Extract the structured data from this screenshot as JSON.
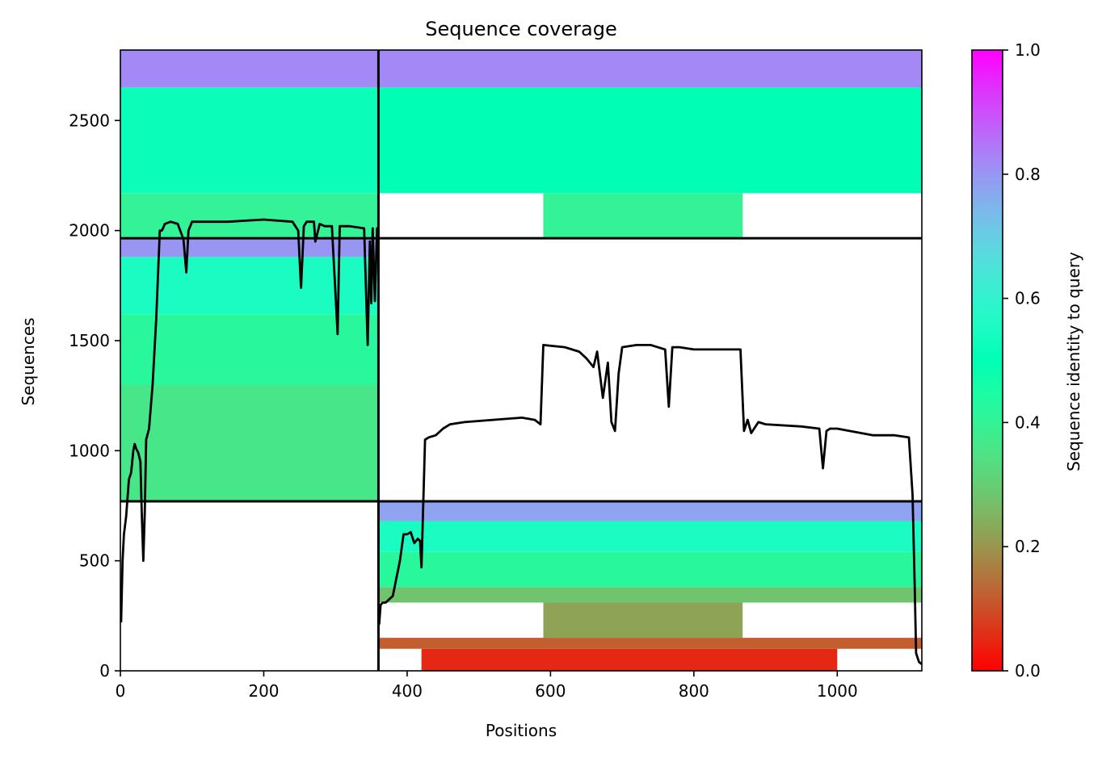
{
  "chart_data": {
    "type": "heatmap",
    "title": "Sequence coverage",
    "xlabel": "Positions",
    "ylabel": "Sequences",
    "xlim": [
      0,
      1118
    ],
    "ylim": [
      0,
      2820
    ],
    "xticks": [
      0,
      200,
      400,
      600,
      800,
      1000
    ],
    "yticks": [
      0,
      500,
      1000,
      1500,
      2000,
      2500
    ],
    "grid": false,
    "colormap": "rainbow_r",
    "colorbar": {
      "label": "Sequence identity to query",
      "range": [
        0,
        1
      ],
      "ticks": [
        "0.0",
        "0.2",
        "0.4",
        "0.6",
        "0.8",
        "1.0"
      ]
    },
    "boundaries": {
      "vertical_x": 360,
      "horizontal_y": [
        770,
        1965
      ]
    },
    "blocks": [
      {
        "name": "top-left",
        "x": [
          0,
          360
        ],
        "bands": [
          {
            "y": [
              2650,
              2820
            ],
            "identity": 0.82
          },
          {
            "y": [
              2170,
              2650
            ],
            "identity": 0.52
          },
          {
            "y": [
              1970,
              2170
            ],
            "identity": 0.4
          }
        ]
      },
      {
        "name": "top-right",
        "x": [
          360,
          1118
        ],
        "bands": [
          {
            "y": [
              2650,
              2820
            ],
            "identity": 0.82
          },
          {
            "y": [
              2170,
              2650
            ],
            "identity": 0.5
          },
          {
            "y": [
              1970,
              2170
            ],
            "identity": 0.4,
            "x": [
              590,
              868
            ]
          }
        ]
      },
      {
        "name": "middle-left",
        "x": [
          0,
          360
        ],
        "bands": [
          {
            "y": [
              1880,
              1965
            ],
            "identity": 0.8
          },
          {
            "y": [
              1620,
              1880
            ],
            "identity": 0.55
          },
          {
            "y": [
              1300,
              1620
            ],
            "identity": 0.42
          },
          {
            "y": [
              770,
              1300
            ],
            "identity": 0.36
          }
        ]
      },
      {
        "name": "bottom-right",
        "x": [
          360,
          1118
        ],
        "bands": [
          {
            "y": [
              680,
              770
            ],
            "identity": 0.78
          },
          {
            "y": [
              540,
              680
            ],
            "identity": 0.55
          },
          {
            "y": [
              380,
              540
            ],
            "identity": 0.42
          },
          {
            "y": [
              310,
              380
            ],
            "identity": 0.28
          },
          {
            "y": [
              150,
              310
            ],
            "identity": 0.22,
            "x": [
              590,
              868
            ]
          },
          {
            "y": [
              100,
              150
            ],
            "identity": 0.12
          },
          {
            "y": [
              0,
              100
            ],
            "identity": 0.05,
            "x": [
              420,
              1000
            ]
          }
        ]
      }
    ],
    "series": [
      {
        "type": "line",
        "color": "#000000",
        "segments": [
          {
            "x": [
              1,
              3,
              5,
              8,
              12,
              15,
              18,
              20,
              22,
              25,
              28,
              30,
              32,
              34,
              36,
              40,
              45,
              50,
              55,
              58,
              62,
              70,
              80,
              88,
              92,
              95,
              100,
              120,
              150,
              200,
              240,
              248,
              252,
              256,
              260,
              270,
              272,
              278,
              285,
              295,
              303,
              306,
              320,
              340,
              345,
              348,
              350,
              352,
              355,
              358,
              360
            ],
            "y": [
              220,
              500,
              620,
              700,
              870,
              900,
              1000,
              1030,
              1010,
              990,
              950,
              700,
              500,
              720,
              1050,
              1100,
              1300,
              1600,
              2000,
              2000,
              2030,
              2040,
              2030,
              1960,
              1810,
              2000,
              2040,
              2040,
              2040,
              2050,
              2040,
              2000,
              1740,
              2020,
              2040,
              2040,
              1950,
              2030,
              2020,
              2020,
              1530,
              2020,
              2020,
              2010,
              1480,
              1950,
              1670,
              2010,
              1680,
              2010,
              2000
            ]
          },
          {
            "x": [
              361,
              363,
              366,
              370,
              380,
              390,
              395,
              400,
              405,
              410,
              415,
              418,
              420,
              425,
              430,
              440,
              450,
              460,
              480,
              520,
              560,
              578,
              586,
              590,
              620,
              640,
              650,
              660,
              665,
              670,
              673,
              680,
              685,
              690,
              695,
              700,
              720,
              740,
              760,
              765,
              770,
              780,
              800,
              820,
              840,
              865,
              870,
              875,
              880,
              890,
              900,
              950,
              975,
              980,
              985,
              990,
              1000,
              1050,
              1080,
              1100,
              1105,
              1108,
              1110,
              1114,
              1118
            ],
            "y": [
              210,
              300,
              310,
              310,
              340,
              500,
              620,
              620,
              630,
              580,
              600,
              590,
              470,
              1050,
              1060,
              1070,
              1100,
              1120,
              1130,
              1140,
              1150,
              1140,
              1120,
              1480,
              1470,
              1450,
              1420,
              1380,
              1450,
              1320,
              1240,
              1400,
              1130,
              1090,
              1350,
              1470,
              1480,
              1480,
              1460,
              1200,
              1470,
              1470,
              1460,
              1460,
              1460,
              1460,
              1090,
              1140,
              1080,
              1130,
              1120,
              1110,
              1100,
              920,
              1090,
              1100,
              1100,
              1070,
              1070,
              1060,
              800,
              400,
              80,
              40,
              30
            ]
          }
        ]
      }
    ]
  }
}
